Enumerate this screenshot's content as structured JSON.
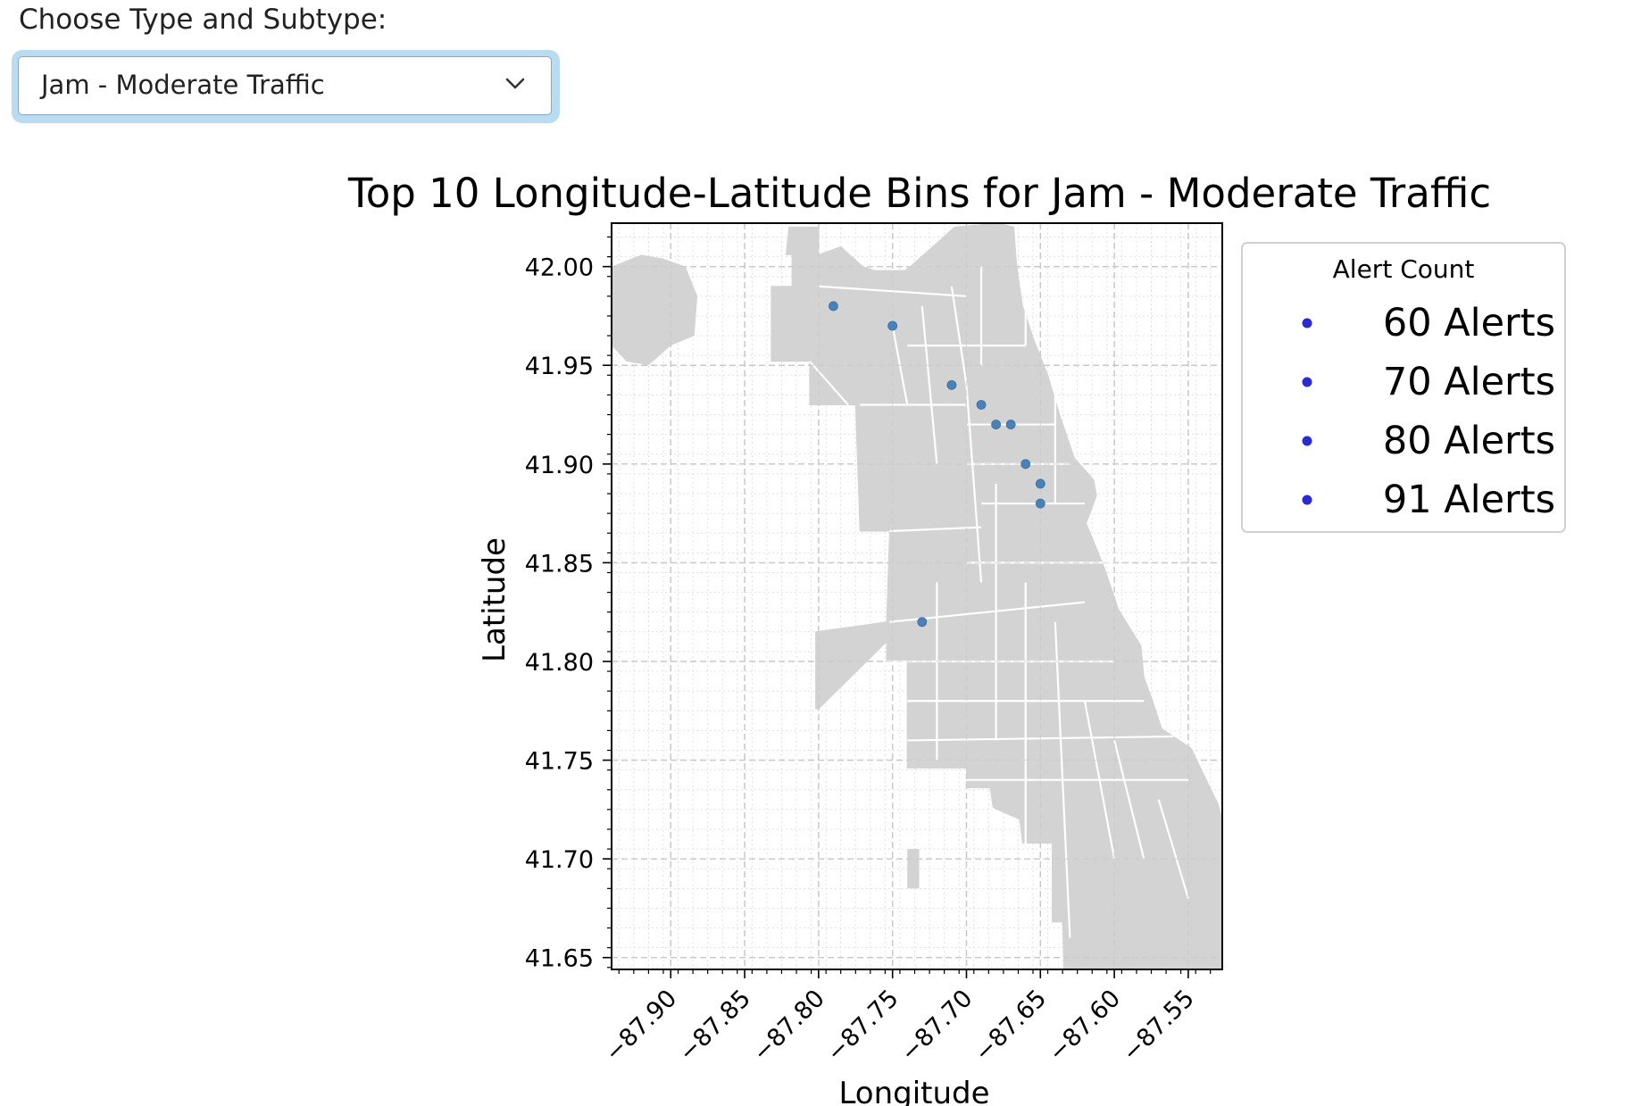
{
  "control": {
    "label": "Choose Type and Subtype:",
    "selected": "Jam - Moderate Traffic",
    "chevron_icon": "chevron-down-icon"
  },
  "chart_data": {
    "type": "scatter",
    "title": "Top 10 Longitude-Latitude Bins for Jam - Moderate Traffic",
    "xlabel": "Longitude",
    "ylabel": "Latitude",
    "xlim": [
      -87.94,
      -87.527
    ],
    "ylim": [
      41.644,
      42.022
    ],
    "xticks": [
      -87.9,
      -87.85,
      -87.8,
      -87.75,
      -87.7,
      -87.65,
      -87.6,
      -87.55
    ],
    "xtick_labels": [
      "−87.90",
      "−87.85",
      "−87.80",
      "−87.75",
      "−87.70",
      "−87.65",
      "−87.60",
      "−87.55"
    ],
    "yticks": [
      41.65,
      41.7,
      41.75,
      41.8,
      41.85,
      41.9,
      41.95,
      42.0
    ],
    "ytick_labels": [
      "41.65",
      "41.70",
      "41.75",
      "41.80",
      "41.85",
      "41.90",
      "41.95",
      "42.00"
    ],
    "grid": true,
    "basemap": "Chicago neighborhood boundaries",
    "legend": {
      "title": "Alert Count",
      "position": "right",
      "entries": [
        "60 Alerts",
        "70 Alerts",
        "80 Alerts",
        "91 Alerts"
      ]
    },
    "points": [
      {
        "x": -87.79,
        "y": 41.98
      },
      {
        "x": -87.75,
        "y": 41.97
      },
      {
        "x": -87.71,
        "y": 41.94
      },
      {
        "x": -87.69,
        "y": 41.93
      },
      {
        "x": -87.68,
        "y": 41.92
      },
      {
        "x": -87.67,
        "y": 41.92
      },
      {
        "x": -87.66,
        "y": 41.9
      },
      {
        "x": -87.65,
        "y": 41.89
      },
      {
        "x": -87.65,
        "y": 41.88
      },
      {
        "x": -87.73,
        "y": 41.82
      }
    ],
    "colors": {
      "points": "#4a82b8",
      "legend_markers": "#2b2bd6",
      "map_fill": "#d3d3d3",
      "map_borders": "#ffffff",
      "grid": "#c8c8c8"
    }
  }
}
